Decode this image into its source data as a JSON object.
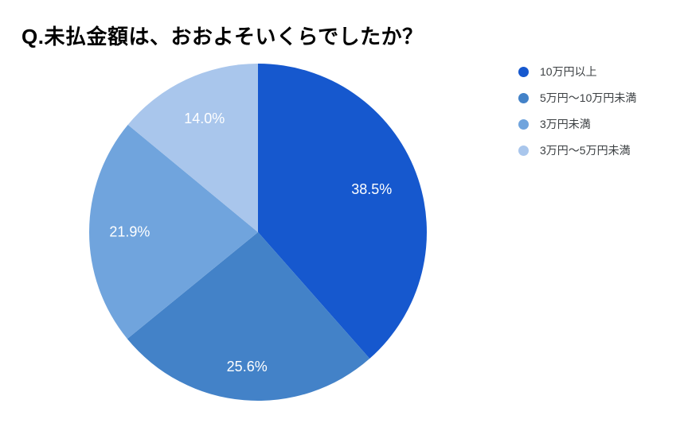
{
  "title": "Q.未払金額は、おおよそいくらでしたか？",
  "legend": {
    "position": "right",
    "items": [
      {
        "label": "10万円以上",
        "color": "#1658ce"
      },
      {
        "label": "5万円～10万円未満",
        "color": "#4382c8"
      },
      {
        "label": "3万円未満",
        "color": "#70a4dd"
      },
      {
        "label": "3万円～5万円未満",
        "color": "#a9c6ec"
      }
    ]
  },
  "chart_data": {
    "type": "pie",
    "title": "Q.未払金額は、おおよそいくらでしたか？",
    "categories": [
      "10万円以上",
      "5万円～10万円未満",
      "3万円未満",
      "3万円～5万円未満"
    ],
    "values": [
      38.5,
      25.6,
      21.9,
      14.0
    ],
    "unit": "%",
    "slice_labels": [
      "38.5%",
      "25.6%",
      "21.9%",
      "14.0%"
    ],
    "colors": [
      "#1658ce",
      "#4382c8",
      "#70a4dd",
      "#a9c6ec"
    ],
    "slice_label_color": "#ffffff",
    "start_angle_deg": 0,
    "direction": "clockwise",
    "legend_position": "right",
    "label_radius_frac": [
      0.72,
      0.8,
      0.76,
      0.745
    ]
  }
}
